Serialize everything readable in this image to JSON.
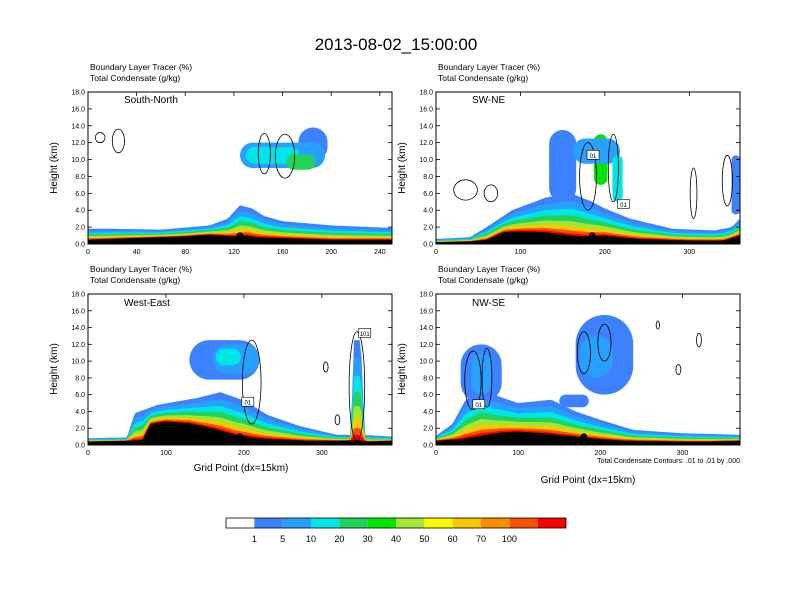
{
  "figure_title": "2013-08-02_15:00:00",
  "colorbar": {
    "labels": [
      "1",
      "5",
      "10",
      "20",
      "30",
      "40",
      "50",
      "60",
      "70",
      "100"
    ],
    "colors": [
      "#ffffff",
      "#3c82ff",
      "#28a0ff",
      "#00e6e6",
      "#23d25a",
      "#00e600",
      "#a0e632",
      "#fafa00",
      "#fac800",
      "#fa8c00",
      "#fa5000",
      "#fa0000"
    ]
  },
  "footnote": "Total Condensate Contours: .01 to .01 by .000",
  "chart_data": [
    {
      "type": "heatmap",
      "id": "south-north",
      "panel_label": "South-North",
      "header_line1": "Boundary Layer Tracer   (%)",
      "header_line2": "Total Condensate   (g/kg)",
      "ylabel": "Height (km)",
      "xlabel": "",
      "xlim": [
        0,
        250
      ],
      "ylim": [
        0,
        18
      ],
      "xticks": [
        "0",
        "40",
        "80",
        "120",
        "160",
        "200",
        "240"
      ],
      "yticks": [
        "0.0",
        "2.0",
        "4.0",
        "6.0",
        "8.0",
        "10.0",
        "12.0",
        "14.0",
        "16.0",
        "18.0"
      ],
      "terrain": [
        [
          0,
          0.5
        ],
        [
          20,
          0.6
        ],
        [
          40,
          0.7
        ],
        [
          60,
          0.8
        ],
        [
          80,
          0.9
        ],
        [
          100,
          1.1
        ],
        [
          110,
          1.0
        ],
        [
          120,
          0.9
        ],
        [
          130,
          1.0
        ],
        [
          140,
          0.8
        ],
        [
          160,
          0.7
        ],
        [
          180,
          0.6
        ],
        [
          200,
          0.5
        ],
        [
          220,
          0.5
        ],
        [
          250,
          0.5
        ]
      ],
      "marker": [
        125,
        1.0
      ],
      "surface_layer": [
        [
          0,
          1.8
        ],
        [
          20,
          1.8
        ],
        [
          60,
          1.7
        ],
        [
          100,
          2.2
        ],
        [
          115,
          3.0
        ],
        [
          125,
          4.6
        ],
        [
          135,
          4.2
        ],
        [
          145,
          3.3
        ],
        [
          160,
          2.7
        ],
        [
          200,
          2.2
        ],
        [
          250,
          1.9
        ]
      ],
      "plumes": [
        {
          "x": 185,
          "bot": 9.8,
          "top": 13.8,
          "half": 12,
          "level": 1
        },
        {
          "x": 160,
          "bot": 9.0,
          "top": 12.0,
          "half": 35,
          "level": 2
        },
        {
          "x": 152,
          "bot": 9.5,
          "top": 11.5,
          "half": 22,
          "level": 3
        },
        {
          "x": 175,
          "bot": 8.8,
          "top": 10.6,
          "half": 12,
          "level": 4
        }
      ],
      "contours": [
        {
          "cx": 25,
          "cy": 12.2,
          "rx": 5,
          "ry": 1.4
        },
        {
          "cx": 10,
          "cy": 12.6,
          "rx": 4,
          "ry": 0.6
        },
        {
          "cx": 145,
          "cy": 10.7,
          "rx": 5,
          "ry": 2.4
        },
        {
          "cx": 162,
          "cy": 10.4,
          "rx": 8,
          "ry": 2.6
        }
      ],
      "boxes": []
    },
    {
      "type": "heatmap",
      "id": "sw-ne",
      "panel_label": "SW-NE",
      "header_line1": "Boundary Layer Tracer   (%)",
      "header_line2": "Total Condensate   (g/kg)",
      "ylabel": "Height (km)",
      "xlabel": "",
      "xlim": [
        0,
        360
      ],
      "ylim": [
        0,
        18
      ],
      "xticks": [
        "0",
        "100",
        "200",
        "300"
      ],
      "yticks": [
        "0.0",
        "2.0",
        "4.0",
        "6.0",
        "8.0",
        "10.0",
        "12.0",
        "14.0",
        "16.0",
        "18.0"
      ],
      "terrain": [
        [
          0,
          0.2
        ],
        [
          40,
          0.3
        ],
        [
          60,
          0.5
        ],
        [
          80,
          1.4
        ],
        [
          100,
          1.5
        ],
        [
          130,
          1.4
        ],
        [
          160,
          1.0
        ],
        [
          180,
          0.9
        ],
        [
          200,
          1.0
        ],
        [
          240,
          0.6
        ],
        [
          300,
          0.4
        ],
        [
          340,
          0.4
        ],
        [
          360,
          1.0
        ]
      ],
      "marker": [
        185,
        1.0
      ],
      "surface_layer": [
        [
          0,
          0.6
        ],
        [
          40,
          0.8
        ],
        [
          60,
          2.0
        ],
        [
          90,
          4.0
        ],
        [
          130,
          5.5
        ],
        [
          160,
          6.0
        ],
        [
          185,
          5.0
        ],
        [
          200,
          4.2
        ],
        [
          230,
          3.0
        ],
        [
          280,
          1.8
        ],
        [
          330,
          1.6
        ],
        [
          350,
          2.0
        ],
        [
          360,
          3.0
        ]
      ],
      "plumes": [
        {
          "x": 195,
          "bot": 7.0,
          "top": 13.0,
          "half": 8,
          "level": 5
        },
        {
          "x": 150,
          "bot": 5.0,
          "top": 13.5,
          "half": 16,
          "level": 1
        },
        {
          "x": 190,
          "bot": 9.5,
          "top": 12.5,
          "half": 28,
          "level": 2
        },
        {
          "x": 215,
          "bot": 5.0,
          "top": 10.5,
          "half": 6,
          "level": 3
        },
        {
          "x": 355,
          "bot": 3.5,
          "top": 10.5,
          "half": 5,
          "level": 1
        }
      ],
      "contours": [
        {
          "cx": 35,
          "cy": 6.4,
          "rx": 14,
          "ry": 1.2
        },
        {
          "cx": 65,
          "cy": 6.0,
          "rx": 8,
          "ry": 1.0
        },
        {
          "cx": 180,
          "cy": 8.0,
          "rx": 10,
          "ry": 4.0
        },
        {
          "cx": 210,
          "cy": 9.0,
          "rx": 6,
          "ry": 4.0
        },
        {
          "cx": 305,
          "cy": 6.0,
          "rx": 4,
          "ry": 3.0
        },
        {
          "cx": 345,
          "cy": 7.5,
          "rx": 6,
          "ry": 3.0
        }
      ],
      "boxes": [
        {
          "x": 186,
          "y": 10.5,
          "text": "01"
        },
        {
          "x": 222,
          "y": 4.7,
          "text": "01"
        }
      ]
    },
    {
      "type": "heatmap",
      "id": "west-east",
      "panel_label": "West-East",
      "header_line1": "Boundary Layer Tracer   (%)",
      "header_line2": "Total Condensate   (g/kg)",
      "ylabel": "Height (km)",
      "xlabel": "Grid Point (dx=15km)",
      "xlim": [
        0,
        390
      ],
      "ylim": [
        0,
        18
      ],
      "xticks": [
        "0",
        "100",
        "200",
        "300"
      ],
      "yticks": [
        "0.0",
        "2.0",
        "4.0",
        "6.0",
        "8.0",
        "10.0",
        "12.0",
        "14.0",
        "16.0",
        "18.0"
      ],
      "terrain": [
        [
          0,
          0.4
        ],
        [
          50,
          0.5
        ],
        [
          70,
          0.6
        ],
        [
          80,
          2.5
        ],
        [
          100,
          2.8
        ],
        [
          130,
          2.6
        ],
        [
          160,
          2.0
        ],
        [
          190,
          1.2
        ],
        [
          220,
          0.8
        ],
        [
          280,
          0.5
        ],
        [
          330,
          0.5
        ],
        [
          345,
          0.6
        ],
        [
          360,
          0.4
        ],
        [
          390,
          0.5
        ]
      ],
      "marker": [
        195,
        1.0
      ],
      "surface_layer": [
        [
          0,
          0.8
        ],
        [
          50,
          0.9
        ],
        [
          60,
          3.8
        ],
        [
          90,
          4.8
        ],
        [
          140,
          5.6
        ],
        [
          170,
          6.3
        ],
        [
          200,
          5.3
        ],
        [
          230,
          3.6
        ],
        [
          270,
          2.3
        ],
        [
          320,
          1.2
        ],
        [
          338,
          1.2
        ],
        [
          340,
          12.5
        ],
        [
          350,
          12.5
        ],
        [
          355,
          1.2
        ],
        [
          390,
          1.0
        ]
      ],
      "plumes": [
        {
          "x": 175,
          "bot": 7.8,
          "top": 12.5,
          "half": 45,
          "level": 1
        },
        {
          "x": 190,
          "bot": 8.5,
          "top": 12.0,
          "half": 30,
          "level": 2
        },
        {
          "x": 180,
          "bot": 9.5,
          "top": 11.5,
          "half": 16,
          "level": 3
        }
      ],
      "contours": [
        {
          "cx": 210,
          "cy": 7.5,
          "rx": 12,
          "ry": 5.0
        },
        {
          "cx": 345,
          "cy": 7.0,
          "rx": 10,
          "ry": 6.5
        },
        {
          "cx": 305,
          "cy": 9.3,
          "rx": 3,
          "ry": 0.6
        },
        {
          "cx": 320,
          "cy": 3.0,
          "rx": 3,
          "ry": 0.6
        }
      ],
      "boxes": [
        {
          "x": 205,
          "y": 5.1,
          "text": "01"
        },
        {
          "x": 355,
          "y": 13.3,
          "text": "101"
        }
      ]
    },
    {
      "type": "heatmap",
      "id": "nw-se",
      "panel_label": "NW-SE",
      "header_line1": "Boundary Layer Tracer   (%)",
      "header_line2": "Total Condensate   (g/kg)",
      "ylabel": "Height (km)",
      "xlabel": "Grid Point (dx=15km)",
      "xlim": [
        0,
        370
      ],
      "ylim": [
        0,
        18
      ],
      "xticks": [
        "0",
        "100",
        "200",
        "300"
      ],
      "yticks": [
        "0.0",
        "2.0",
        "4.0",
        "6.0",
        "8.0",
        "10.0",
        "12.0",
        "14.0",
        "16.0",
        "18.0"
      ],
      "terrain": [
        [
          0,
          0.5
        ],
        [
          30,
          0.7
        ],
        [
          60,
          1.2
        ],
        [
          80,
          1.5
        ],
        [
          100,
          1.6
        ],
        [
          130,
          1.4
        ],
        [
          150,
          1.2
        ],
        [
          180,
          0.9
        ],
        [
          200,
          0.7
        ],
        [
          230,
          0.5
        ],
        [
          300,
          0.4
        ],
        [
          330,
          0.4
        ],
        [
          370,
          0.5
        ]
      ],
      "marker": [
        180,
        1.0
      ],
      "surface_layer": [
        [
          0,
          1.1
        ],
        [
          20,
          2.5
        ],
        [
          35,
          5.2
        ],
        [
          55,
          7.0
        ],
        [
          70,
          6.0
        ],
        [
          100,
          5.0
        ],
        [
          140,
          5.4
        ],
        [
          170,
          4.0
        ],
        [
          200,
          3.0
        ],
        [
          240,
          1.8
        ],
        [
          300,
          1.4
        ],
        [
          340,
          1.3
        ],
        [
          370,
          1.2
        ]
      ],
      "plumes": [
        {
          "x": 55,
          "bot": 5.0,
          "top": 12.0,
          "half": 25,
          "level": 1
        },
        {
          "x": 55,
          "bot": 6.0,
          "top": 11.0,
          "half": 12,
          "level": 2
        },
        {
          "x": 205,
          "bot": 6.0,
          "top": 15.5,
          "half": 35,
          "level": 1
        },
        {
          "x": 195,
          "bot": 8.0,
          "top": 13.0,
          "half": 20,
          "level": 2
        },
        {
          "x": 168,
          "bot": 4.5,
          "top": 6.0,
          "half": 18,
          "level": 1
        }
      ],
      "contours": [
        {
          "cx": 45,
          "cy": 7.7,
          "rx": 10,
          "ry": 3.5
        },
        {
          "cx": 62,
          "cy": 8.0,
          "rx": 6,
          "ry": 3.5
        },
        {
          "cx": 180,
          "cy": 11.0,
          "rx": 8,
          "ry": 2.5
        },
        {
          "cx": 205,
          "cy": 12.2,
          "rx": 8,
          "ry": 2.2
        },
        {
          "cx": 270,
          "cy": 14.3,
          "rx": 2,
          "ry": 0.5
        },
        {
          "cx": 320,
          "cy": 12.5,
          "rx": 3,
          "ry": 0.8
        },
        {
          "cx": 295,
          "cy": 9.0,
          "rx": 3,
          "ry": 0.6
        }
      ],
      "boxes": [
        {
          "x": 52,
          "y": 4.8,
          "text": "01"
        }
      ]
    }
  ]
}
